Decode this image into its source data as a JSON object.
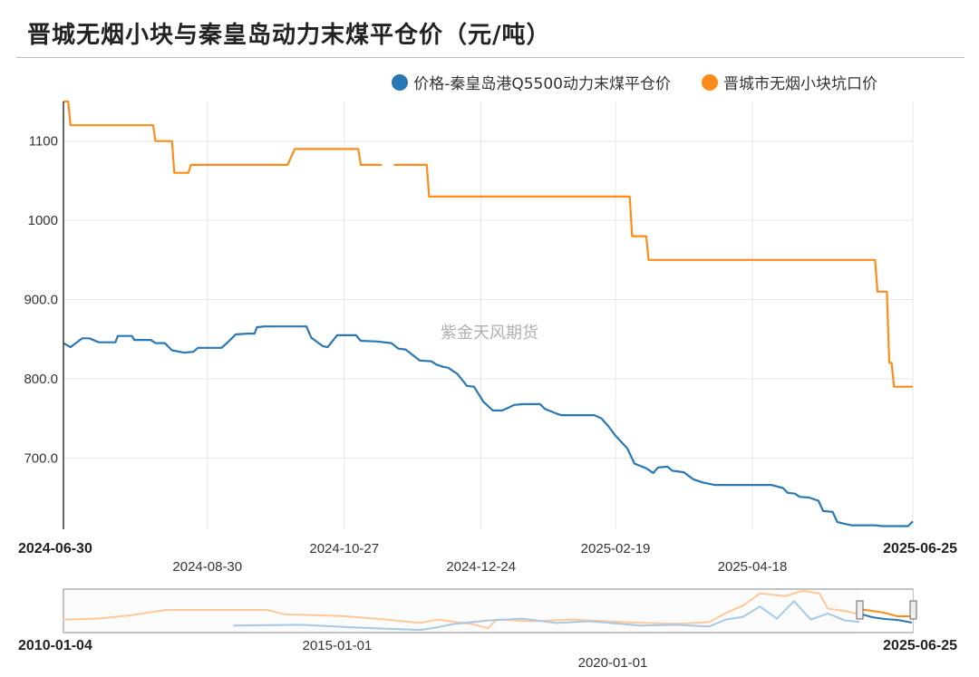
{
  "title": "晋城无烟小块与秦皇岛动力末煤平仓价（元/吨）",
  "watermark": "紫金天风期货",
  "colors": {
    "blue": "#2878b5",
    "orange": "#ff8c1a",
    "grid": "#e6e6e6"
  },
  "chart_data": {
    "type": "line",
    "title": "晋城无烟小块与秦皇岛动力末煤平仓价（元/吨）",
    "xlabel": "",
    "ylabel": "",
    "x_range": [
      "2024-06-30",
      "2025-06-25"
    ],
    "ylim": [
      610,
      1150
    ],
    "y_ticks": [
      {
        "value": 1100,
        "label": "1100"
      },
      {
        "value": 1000,
        "label": "1000"
      },
      {
        "value": 900,
        "label": "900.0"
      },
      {
        "value": 800,
        "label": "800.0"
      },
      {
        "value": 700,
        "label": "700.0"
      }
    ],
    "x_ticks": [
      {
        "date": "2024-06-30",
        "label": "2024-06-30",
        "row": 1,
        "bold": true
      },
      {
        "date": "2024-08-30",
        "label": "2024-08-30",
        "row": 2,
        "bold": false
      },
      {
        "date": "2024-10-27",
        "label": "2024-10-27",
        "row": 1,
        "bold": false
      },
      {
        "date": "2024-12-24",
        "label": "2024-12-24",
        "row": 2,
        "bold": false
      },
      {
        "date": "2025-02-19",
        "label": "2025-02-19",
        "row": 1,
        "bold": false
      },
      {
        "date": "2025-04-18",
        "label": "2025-04-18",
        "row": 2,
        "bold": false
      },
      {
        "date": "2025-06-25",
        "label": "2025-06-25",
        "row": 1,
        "bold": true
      }
    ],
    "legend_position": "top-right",
    "grid": true,
    "series": [
      {
        "name": "价格-秦皇岛港Q5500动力末煤平仓价",
        "color": "#2878b5",
        "points": [
          [
            "2024-06-30",
            845
          ],
          [
            "2024-07-03",
            840
          ],
          [
            "2024-07-08",
            851
          ],
          [
            "2024-07-11",
            851
          ],
          [
            "2024-07-15",
            846
          ],
          [
            "2024-07-22",
            846
          ],
          [
            "2024-07-23",
            854
          ],
          [
            "2024-07-29",
            854
          ],
          [
            "2024-07-30",
            849
          ],
          [
            "2024-08-06",
            849
          ],
          [
            "2024-08-08",
            845
          ],
          [
            "2024-08-12",
            845
          ],
          [
            "2024-08-15",
            836
          ],
          [
            "2024-08-20",
            833
          ],
          [
            "2024-08-24",
            834
          ],
          [
            "2024-08-26",
            839
          ],
          [
            "2024-09-05",
            839
          ],
          [
            "2024-09-08",
            847
          ],
          [
            "2024-09-11",
            856
          ],
          [
            "2024-09-16",
            857
          ],
          [
            "2024-09-19",
            857
          ],
          [
            "2024-09-20",
            865
          ],
          [
            "2024-09-23",
            866
          ],
          [
            "2024-10-11",
            866
          ],
          [
            "2024-10-13",
            852
          ],
          [
            "2024-10-18",
            841
          ],
          [
            "2024-10-20",
            840
          ],
          [
            "2024-10-24",
            855
          ],
          [
            "2024-11-01",
            855
          ],
          [
            "2024-11-03",
            848
          ],
          [
            "2024-11-10",
            847
          ],
          [
            "2024-11-16",
            845
          ],
          [
            "2024-11-19",
            838
          ],
          [
            "2024-11-22",
            837
          ],
          [
            "2024-11-28",
            823
          ],
          [
            "2024-12-03",
            822
          ],
          [
            "2024-12-05",
            818
          ],
          [
            "2024-12-08",
            815
          ],
          [
            "2024-12-10",
            814
          ],
          [
            "2024-12-14",
            806
          ],
          [
            "2024-12-18",
            791
          ],
          [
            "2024-12-21",
            790
          ],
          [
            "2024-12-25",
            771
          ],
          [
            "2024-12-29",
            760
          ],
          [
            "2025-01-02",
            760
          ],
          [
            "2025-01-05",
            764
          ],
          [
            "2025-01-07",
            767
          ],
          [
            "2025-01-11",
            768
          ],
          [
            "2025-01-18",
            768
          ],
          [
            "2025-01-20",
            762
          ],
          [
            "2025-01-25",
            756
          ],
          [
            "2025-01-27",
            754
          ],
          [
            "2025-02-10",
            754
          ],
          [
            "2025-02-13",
            750
          ],
          [
            "2025-02-16",
            740
          ],
          [
            "2025-02-19",
            728
          ],
          [
            "2025-02-24",
            712
          ],
          [
            "2025-02-27",
            693
          ],
          [
            "2025-03-04",
            687
          ],
          [
            "2025-03-07",
            681
          ],
          [
            "2025-03-09",
            688
          ],
          [
            "2025-03-13",
            689
          ],
          [
            "2025-03-15",
            684
          ],
          [
            "2025-03-20",
            682
          ],
          [
            "2025-03-24",
            673
          ],
          [
            "2025-03-28",
            669
          ],
          [
            "2025-04-02",
            666
          ],
          [
            "2025-04-26",
            666
          ],
          [
            "2025-05-01",
            662
          ],
          [
            "2025-05-03",
            656
          ],
          [
            "2025-05-06",
            655
          ],
          [
            "2025-05-08",
            651
          ],
          [
            "2025-05-12",
            650
          ],
          [
            "2025-05-16",
            646
          ],
          [
            "2025-05-18",
            633
          ],
          [
            "2025-05-22",
            632
          ],
          [
            "2025-05-24",
            619
          ],
          [
            "2025-05-27",
            617
          ],
          [
            "2025-05-30",
            615
          ],
          [
            "2025-06-09",
            615
          ],
          [
            "2025-06-12",
            614
          ],
          [
            "2025-06-23",
            614
          ],
          [
            "2025-06-24",
            617
          ],
          [
            "2025-06-25",
            620
          ]
        ]
      },
      {
        "name": "晋城市无烟小块坑口价",
        "color": "#ff8c1a",
        "segments": [
          [
            [
              "2024-06-30",
              1150
            ],
            [
              "2024-07-02",
              1150
            ],
            [
              "2024-07-03",
              1120
            ],
            [
              "2024-08-07",
              1120
            ],
            [
              "2024-08-08",
              1100
            ],
            [
              "2024-08-15",
              1100
            ],
            [
              "2024-08-16",
              1060
            ],
            [
              "2024-08-22",
              1060
            ],
            [
              "2024-08-23",
              1070
            ],
            [
              "2024-10-03",
              1070
            ],
            [
              "2024-10-06",
              1090
            ],
            [
              "2024-11-02",
              1090
            ],
            [
              "2024-11-03",
              1070
            ],
            [
              "2024-11-12",
              1070
            ]
          ],
          [
            [
              "2024-11-17",
              1070
            ],
            [
              "2024-12-01",
              1070
            ],
            [
              "2024-12-02",
              1030
            ],
            [
              "2025-02-25",
              1030
            ],
            [
              "2025-02-26",
              980
            ],
            [
              "2025-03-04",
              980
            ],
            [
              "2025-03-05",
              950
            ],
            [
              "2025-06-09",
              950
            ],
            [
              "2025-06-10",
              910
            ],
            [
              "2025-06-14",
              910
            ],
            [
              "2025-06-15",
              820
            ],
            [
              "2025-06-16",
              820
            ],
            [
              "2025-06-17",
              790
            ],
            [
              "2025-06-25",
              790
            ]
          ]
        ]
      }
    ],
    "navigator": {
      "x_range": [
        "2010-01-04",
        "2025-06-25"
      ],
      "ticks": [
        {
          "label": "2010-01-04",
          "row": 1,
          "bold": true
        },
        {
          "label": "2015-01-01",
          "row": 1,
          "bold": false
        },
        {
          "label": "2020-01-01",
          "row": 2,
          "bold": false
        },
        {
          "label": "2025-06-25",
          "row": 1,
          "bold": true
        }
      ]
    }
  }
}
